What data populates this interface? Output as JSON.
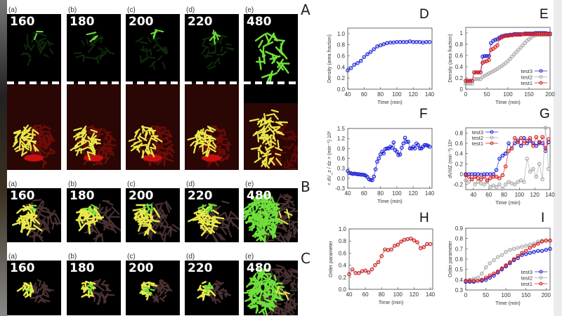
{
  "row_letters": [
    "A",
    "B",
    "C"
  ],
  "panel_labels": [
    "(a)",
    "(b)",
    "(c)",
    "(d)",
    "(e)"
  ],
  "times": [
    "160",
    "180",
    "200",
    "220",
    "480"
  ],
  "colors": {
    "test3": "#1c22d6",
    "test2": "#a9a9a9",
    "test1": "#d41c1c",
    "green": "#6ee03a",
    "yellow": "#e8e84a",
    "red": "#c81010",
    "brown": "#4a3232"
  },
  "chart_data": [
    {
      "letter": "D",
      "type": "line",
      "xlabel": "Time (min)",
      "ylabel": "Density (area fraction)",
      "xlim": [
        40,
        143
      ],
      "ylim": [
        0,
        1.1
      ],
      "xticks": [
        40,
        60,
        80,
        100,
        120,
        140
      ],
      "yticks": [
        "0.0",
        "0.2",
        "0.4",
        "0.6",
        "0.8",
        "1.0"
      ],
      "grid": false,
      "series": [
        {
          "color": "#1c22d6",
          "x": [
            40,
            44,
            48,
            52,
            56,
            60,
            64,
            68,
            72,
            76,
            80,
            84,
            88,
            92,
            96,
            100,
            104,
            108,
            112,
            116,
            120,
            124,
            128,
            132,
            136,
            140
          ],
          "y": [
            0.34,
            0.38,
            0.44,
            0.47,
            0.51,
            0.58,
            0.63,
            0.67,
            0.72,
            0.77,
            0.79,
            0.81,
            0.83,
            0.84,
            0.84,
            0.85,
            0.85,
            0.85,
            0.85,
            0.86,
            0.85,
            0.85,
            0.85,
            0.84,
            0.85,
            0.85
          ]
        }
      ]
    },
    {
      "letter": "E",
      "type": "line",
      "xlabel": "Time (min)",
      "ylabel": "Density (area fraction)",
      "xlim": [
        0,
        200
      ],
      "ylim": [
        0,
        1.1
      ],
      "xticks": [
        0,
        50,
        100,
        150,
        200
      ],
      "yticks": [
        "0",
        "0.2",
        "0.4",
        "0.6",
        "0.8",
        "1"
      ],
      "grid": false,
      "legend": "bottom-right",
      "series": [
        {
          "name": "test3",
          "color": "#1c22d6",
          "x": [
            0,
            5,
            10,
            15,
            20,
            25,
            30,
            35,
            40,
            45,
            50,
            55,
            60,
            65,
            70,
            75,
            80,
            85,
            90,
            95,
            100,
            105,
            110,
            115,
            120,
            125,
            130,
            135,
            140,
            145,
            150,
            155,
            160,
            165,
            170,
            175,
            180,
            185,
            190,
            195,
            200
          ],
          "y": [
            0.15,
            0.15,
            0.15,
            0.15,
            0.3,
            0.3,
            0.3,
            0.3,
            0.58,
            0.59,
            0.59,
            0.59,
            0.82,
            0.86,
            0.88,
            0.89,
            0.92,
            0.94,
            0.95,
            0.96,
            0.96,
            0.97,
            0.97,
            0.98,
            0.98,
            0.98,
            0.98,
            0.98,
            0.99,
            0.99,
            0.99,
            0.99,
            0.99,
            1.0,
            1.0,
            1.0,
            1.0,
            1.0,
            1.0,
            0.99,
            0.99
          ]
        },
        {
          "name": "test2",
          "color": "#a9a9a9",
          "x": [
            0,
            5,
            10,
            15,
            20,
            25,
            30,
            35,
            40,
            45,
            50,
            55,
            60,
            65,
            70,
            75,
            80,
            85,
            90,
            95,
            100,
            105,
            110,
            115,
            120,
            125,
            130,
            135,
            140,
            145,
            150,
            155,
            160,
            165,
            170,
            175,
            180,
            185,
            190,
            195,
            200
          ],
          "y": [
            0.1,
            0.1,
            0.1,
            0.1,
            0.18,
            0.18,
            0.18,
            0.18,
            0.22,
            0.24,
            0.26,
            0.28,
            0.3,
            0.32,
            0.34,
            0.36,
            0.39,
            0.41,
            0.44,
            0.47,
            0.5,
            0.54,
            0.58,
            0.62,
            0.66,
            0.7,
            0.74,
            0.78,
            0.82,
            0.86,
            0.89,
            0.92,
            0.95,
            0.96,
            0.97,
            0.97,
            0.97,
            0.97,
            0.97,
            0.97,
            0.97
          ]
        },
        {
          "name": "test1",
          "color": "#d41c1c",
          "x": [
            0,
            5,
            10,
            15,
            20,
            25,
            30,
            35,
            40,
            45,
            50,
            55,
            60,
            65,
            70,
            75,
            80,
            85,
            90,
            95,
            100,
            105,
            110,
            115,
            120,
            125,
            130,
            135,
            140,
            145,
            150,
            155,
            160,
            165,
            170,
            175,
            180,
            185,
            190,
            195,
            200
          ],
          "y": [
            0.15,
            0.15,
            0.15,
            0.15,
            0.3,
            0.3,
            0.3,
            0.3,
            0.47,
            0.49,
            0.5,
            0.52,
            0.7,
            0.72,
            0.75,
            0.78,
            0.9,
            0.92,
            0.94,
            0.95,
            0.95,
            0.96,
            0.96,
            0.97,
            0.97,
            0.97,
            0.97,
            0.98,
            0.98,
            0.98,
            0.98,
            0.98,
            0.98,
            0.98,
            0.98,
            0.98,
            0.98,
            0.98,
            0.98,
            0.98,
            0.98
          ]
        }
      ]
    },
    {
      "letter": "F",
      "type": "line",
      "xlabel": "Time (min)",
      "ylabel": "< dV_z / dz > (min⁻¹) 10²",
      "xlim": [
        40,
        143
      ],
      "ylim": [
        -0.3,
        1.5
      ],
      "xticks": [
        40,
        60,
        80,
        100,
        120,
        140
      ],
      "yticks": [
        "-0.3",
        "0.0",
        "0.3",
        "0.6",
        "0.9",
        "1.2",
        "1.5"
      ],
      "grid": false,
      "series": [
        {
          "color": "#1c22d6",
          "x": [
            40,
            42,
            44,
            46,
            48,
            50,
            52,
            54,
            56,
            58,
            60,
            62,
            64,
            66,
            68,
            70,
            72,
            74,
            76,
            78,
            80,
            82,
            84,
            86,
            88,
            90,
            92,
            94,
            96,
            98,
            100,
            102,
            104,
            106,
            108,
            110,
            112,
            114,
            116,
            118,
            120,
            122,
            124,
            126,
            128,
            130,
            132,
            134,
            136,
            138,
            140
          ],
          "y": [
            0.22,
            0.16,
            0.15,
            0.13,
            0.14,
            0.13,
            0.12,
            0.12,
            0.11,
            0.11,
            0.1,
            0.08,
            0.04,
            -0.03,
            -0.05,
            -0.06,
            0.05,
            0.27,
            0.5,
            0.6,
            0.72,
            0.8,
            0.75,
            0.88,
            0.9,
            0.9,
            0.95,
            0.92,
            1.08,
            0.85,
            0.8,
            0.7,
            0.72,
            0.92,
            1.05,
            1.22,
            1.1,
            1.1,
            0.9,
            0.9,
            0.95,
            0.9,
            1.05,
            1.0,
            0.9,
            0.9,
            0.95,
            1.0,
            1.0,
            0.98,
            0.95
          ]
        }
      ]
    },
    {
      "letter": "G",
      "type": "line",
      "xlabel": "Time (min)",
      "ylabel": "dV/dZ (min⁻¹) 10⁴",
      "xlim": [
        30,
        140
      ],
      "ylim": [
        -0.3,
        0.9
      ],
      "xticks": [
        40,
        60,
        80,
        100,
        120,
        140
      ],
      "yticks": [
        "-0.2",
        "0",
        "0.2",
        "0.4",
        "0.6",
        "0.8"
      ],
      "grid": false,
      "legend": "top-left",
      "series": [
        {
          "name": "test3",
          "color": "#1c22d6",
          "x": [
            30,
            34,
            38,
            42,
            46,
            50,
            54,
            58,
            62,
            66,
            70,
            74,
            78,
            82,
            86,
            90,
            94,
            98,
            102,
            106,
            110,
            114,
            118,
            122,
            126,
            130,
            134,
            138
          ],
          "y": [
            0,
            0,
            0,
            0,
            0,
            -0.01,
            0,
            0,
            0,
            0,
            0.08,
            0.3,
            0.36,
            0.4,
            0.6,
            0.5,
            0.6,
            0.65,
            0.55,
            0.7,
            0.6,
            0.65,
            0.6,
            0.55,
            0.62,
            0.6,
            0.45,
            0.62
          ]
        },
        {
          "name": "test2",
          "color": "#a9a9a9",
          "x": [
            30,
            34,
            38,
            42,
            46,
            50,
            54,
            58,
            62,
            66,
            70,
            74,
            78,
            82,
            86,
            90,
            94,
            98,
            102,
            106,
            110,
            114,
            118,
            122,
            126,
            130,
            134,
            138
          ],
          "y": [
            -0.12,
            -0.15,
            -0.1,
            -0.2,
            -0.15,
            -0.18,
            -0.2,
            -0.15,
            -0.25,
            -0.22,
            -0.25,
            -0.2,
            -0.28,
            -0.2,
            -0.15,
            -0.18,
            -0.2,
            -0.15,
            -0.12,
            -0.15,
            0.3,
            0.05,
            0.1,
            -0.05,
            0.2,
            -0.1,
            0.9,
            0.1
          ]
        },
        {
          "name": "test1",
          "color": "#d41c1c",
          "x": [
            30,
            34,
            38,
            42,
            46,
            50,
            54,
            58,
            62,
            66,
            70,
            74,
            78,
            82,
            86,
            90,
            94,
            98,
            102,
            106,
            110,
            114,
            118,
            122,
            126,
            130,
            134,
            138
          ],
          "y": [
            -0.02,
            -0.05,
            -0.1,
            -0.05,
            -0.08,
            -0.1,
            -0.05,
            -0.12,
            -0.08,
            -0.05,
            -0.05,
            -0.08,
            -0.02,
            0.15,
            0.45,
            0.5,
            0.7,
            0.62,
            0.7,
            0.6,
            0.65,
            0.7,
            0.55,
            0.72,
            0.6,
            0.72,
            0.5,
            0.68
          ]
        }
      ]
    },
    {
      "letter": "H",
      "type": "line",
      "xlabel": "Time (min)",
      "ylabel": "Order parameter",
      "xlim": [
        40,
        143
      ],
      "ylim": [
        0,
        1.0
      ],
      "xticks": [
        40,
        60,
        80,
        100,
        120,
        140
      ],
      "yticks": [
        "0.0",
        "0.2",
        "0.4",
        "0.6",
        "0.8",
        "1.0"
      ],
      "grid": false,
      "series": [
        {
          "color": "#c42020",
          "x": [
            40,
            44,
            48,
            52,
            56,
            60,
            64,
            68,
            72,
            76,
            80,
            84,
            88,
            92,
            96,
            100,
            104,
            108,
            112,
            116,
            120,
            124,
            128,
            132,
            136,
            140
          ],
          "y": [
            0.25,
            0.33,
            0.27,
            0.27,
            0.3,
            0.31,
            0.28,
            0.33,
            0.4,
            0.45,
            0.55,
            0.66,
            0.65,
            0.66,
            0.72,
            0.74,
            0.79,
            0.82,
            0.83,
            0.84,
            0.81,
            0.78,
            0.68,
            0.7,
            0.75,
            0.75
          ]
        }
      ]
    },
    {
      "letter": "I",
      "type": "line",
      "xlabel": "Time (min)",
      "ylabel": "Order parameter",
      "xlim": [
        0,
        210
      ],
      "ylim": [
        0.3,
        0.9
      ],
      "xticks": [
        0,
        50,
        100,
        150,
        200
      ],
      "yticks": [
        "0.3",
        "0.4",
        "0.5",
        "0.6",
        "0.7",
        "0.8",
        "0.9"
      ],
      "grid": false,
      "legend": "bottom-right",
      "series": [
        {
          "name": "test3",
          "color": "#1c22d6",
          "x": [
            0,
            10,
            20,
            30,
            40,
            50,
            60,
            70,
            80,
            90,
            100,
            110,
            120,
            130,
            140,
            150,
            160,
            170,
            180,
            190,
            200,
            210
          ],
          "y": [
            0.38,
            0.38,
            0.38,
            0.39,
            0.39,
            0.4,
            0.42,
            0.44,
            0.47,
            0.5,
            0.53,
            0.56,
            0.59,
            0.61,
            0.64,
            0.65,
            0.66,
            0.67,
            0.68,
            0.68,
            0.69,
            0.7
          ]
        },
        {
          "name": "test2",
          "color": "#a9a9a9",
          "x": [
            0,
            10,
            20,
            30,
            40,
            50,
            60,
            70,
            80,
            90,
            100,
            110,
            120,
            130,
            140,
            150,
            160,
            170,
            180,
            190,
            200,
            210
          ],
          "y": [
            0.39,
            0.4,
            0.41,
            0.42,
            0.46,
            0.52,
            0.56,
            0.59,
            0.62,
            0.64,
            0.67,
            0.69,
            0.7,
            0.71,
            0.72,
            0.73,
            0.74,
            0.75,
            0.77,
            0.78,
            0.78,
            0.78
          ]
        },
        {
          "name": "test1",
          "color": "#d41c1c",
          "x": [
            0,
            10,
            20,
            30,
            40,
            50,
            60,
            70,
            80,
            90,
            100,
            110,
            120,
            130,
            140,
            150,
            160,
            170,
            180,
            190,
            200,
            210
          ],
          "y": [
            0.39,
            0.39,
            0.39,
            0.39,
            0.4,
            0.42,
            0.44,
            0.46,
            0.48,
            0.51,
            0.54,
            0.57,
            0.6,
            0.63,
            0.66,
            0.68,
            0.71,
            0.73,
            0.75,
            0.77,
            0.78,
            0.78
          ]
        }
      ]
    }
  ]
}
